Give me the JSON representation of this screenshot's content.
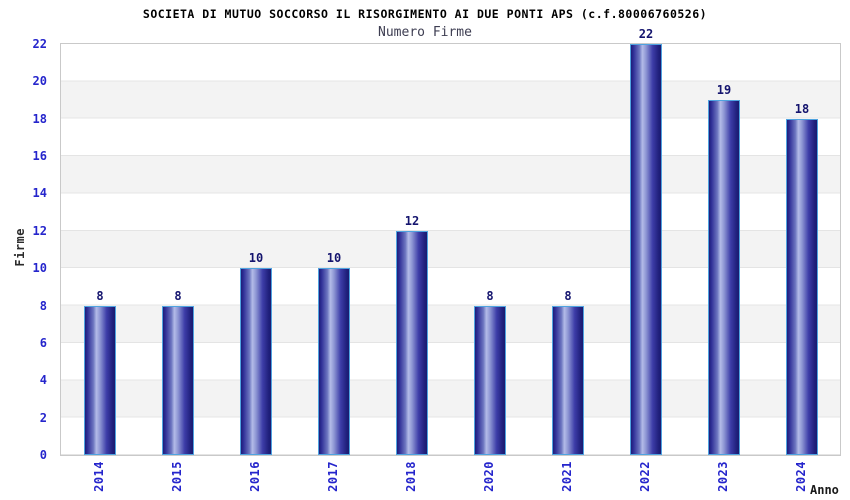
{
  "chart_data": {
    "type": "bar",
    "title": "SOCIETA DI MUTUO SOCCORSO IL RISORGIMENTO AI DUE PONTI APS (c.f.80006760526)",
    "subtitle": "Numero Firme",
    "xlabel": "Anno",
    "ylabel": "Firme",
    "categories": [
      "2014",
      "2015",
      "2016",
      "2017",
      "2018",
      "2020",
      "2021",
      "2022",
      "2023",
      "2024"
    ],
    "values": [
      8,
      8,
      10,
      10,
      12,
      8,
      8,
      22,
      19,
      18
    ],
    "ylim": [
      0,
      22
    ],
    "ytick_step": 2,
    "legend": "none",
    "grid": "horizontal gridlines with alternating gray/white bands of 2 units",
    "colors": {
      "bar_dark": "#1e1e78",
      "bar_light": "#b3bce8",
      "bar_border": "#4fa3e0",
      "tick_label": "#2525cc",
      "value_label": "#14146e",
      "band_gray": "#f3f3f3",
      "gridline": "#e4e4e4",
      "plot_border": "#c9c9c9",
      "title_color": "#000000",
      "subtitle_color": "#3e3e52",
      "background": "#ffffff"
    }
  }
}
